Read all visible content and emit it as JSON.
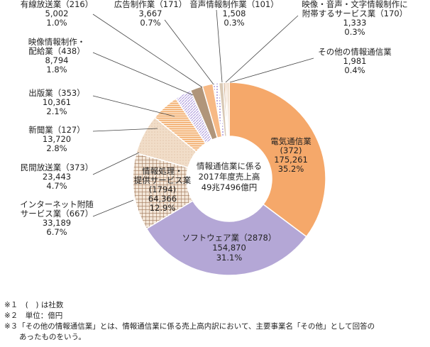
{
  "chart_data": {
    "type": "pie",
    "donut": true,
    "center_text": [
      "情報通信業に係る",
      "2017年度売上高",
      "49兆7496億円"
    ],
    "slices": [
      {
        "name": "電気通信業",
        "count": "(372)",
        "value": 175261,
        "pct": 35.2,
        "value_text": "175,261",
        "pct_text": "35.2%",
        "color": "#f5a86a",
        "pattern": "solid"
      },
      {
        "name": "ソフトウェア業",
        "count": "(2878)",
        "value": 154870,
        "pct": 31.1,
        "value_text": "154,870",
        "pct_text": "31.1%",
        "color": "#b4a7d6",
        "pattern": "solid"
      },
      {
        "name": "情報処理・提供サービス業",
        "count": "(1794)",
        "value": 64366,
        "pct": 12.9,
        "value_text": "64,366",
        "pct_text": "12.9%",
        "color": "#b08d6e",
        "pattern": "grid"
      },
      {
        "name": "インターネット附随サービス業",
        "count": "(667)",
        "value": 33189,
        "pct": 6.7,
        "value_text": "33,189",
        "pct_text": "6.7%",
        "color": "#e8c8a8",
        "pattern": "light"
      },
      {
        "name": "民間放送業",
        "count": "(373)",
        "value": 23443,
        "pct": 4.7,
        "value_text": "23,443",
        "pct_text": "4.7%",
        "color": "#f5b87a",
        "pattern": "hlines"
      },
      {
        "name": "新聞業",
        "count": "(127)",
        "value": 13720,
        "pct": 2.8,
        "value_text": "13,720",
        "pct_text": "2.8%",
        "color": "#c8b8e6",
        "pattern": "diag"
      },
      {
        "name": "出版業",
        "count": "(353)",
        "value": 10361,
        "pct": 2.1,
        "value_text": "10,361",
        "pct_text": "2.1%",
        "color": "#b0957a",
        "pattern": "solid"
      },
      {
        "name": "映像情報制作・配給業",
        "count": "(438)",
        "value": 8794,
        "pct": 1.8,
        "value_text": "8,794",
        "pct_text": "1.8%",
        "color": "#f7b985",
        "pattern": "solid"
      },
      {
        "name": "有線放送業",
        "count": "(216)",
        "value": 5002,
        "pct": 1.0,
        "value_text": "5,002",
        "pct_text": "1.0%",
        "color": "#b8a8dc",
        "pattern": "dots"
      },
      {
        "name": "広告制作業",
        "count": "(171)",
        "value": 3667,
        "pct": 0.7,
        "value_text": "3,667",
        "pct_text": "0.7%",
        "color": "#d9c9b5",
        "pattern": "solid"
      },
      {
        "name": "音声情報制作業",
        "count": "(101)",
        "value": 1508,
        "pct": 0.3,
        "value_text": "1,508",
        "pct_text": "0.3%",
        "color": "#c9a17a",
        "pattern": "solid"
      },
      {
        "name": "映像・音声・文字情報制作に附帯するサービス業",
        "count": "(170)",
        "value": 1333,
        "pct": 0.3,
        "value_text": "1,333",
        "pct_text": "0.3%",
        "color": "#e0a070",
        "pattern": "solid"
      },
      {
        "name": "その他の情報通信業",
        "count": "",
        "value": 1981,
        "pct": 0.4,
        "value_text": "1,981",
        "pct_text": "0.4%",
        "color": "#ead2b8",
        "pattern": "solid"
      }
    ],
    "labels": [
      {
        "lines": [
          "電気通信業",
          "(372)",
          "175,261",
          "35.2%"
        ]
      },
      {
        "lines": [
          "ソフトウェア業（2878）",
          "154,870",
          "31.1%"
        ]
      },
      {
        "lines": [
          "情報処理・",
          "提供サービス業",
          "(1794)",
          "64,366",
          "12.9%"
        ]
      },
      {
        "lines": [
          "インターネット附随",
          "サービス業（667）",
          "33,189",
          "6.7%"
        ]
      },
      {
        "lines": [
          "民間放送業（373）",
          "23,443",
          "4.7%"
        ]
      },
      {
        "lines": [
          "新聞業（127）",
          "13,720",
          "2.8%"
        ]
      },
      {
        "lines": [
          "出版業（353）",
          "10,361",
          "2.1%"
        ]
      },
      {
        "lines": [
          "映像情報制作・",
          "配給業（438）",
          "8,794",
          "1.8%"
        ]
      },
      {
        "lines": [
          "有線放送業（216）",
          "5,002",
          "1.0%"
        ]
      },
      {
        "lines": [
          "広告制作業（171）",
          "3,667",
          "0.7%"
        ]
      },
      {
        "lines": [
          "音声情報制作業（101）",
          "1,508",
          "0.3%"
        ]
      },
      {
        "lines": [
          "映像・音声・文字情報制作に",
          "附帯するサービス業（170）",
          "1,333",
          "0.3%"
        ]
      },
      {
        "lines": [
          "その他の情報通信業",
          "1,981",
          "0.4%"
        ]
      }
    ]
  },
  "notes": [
    "※１　(　) は社数",
    "※２　単位：億円",
    "※３「その他の情報通信業」とは、情報通信業に係る売上高内訳において、主要事業名「その他」として回答の",
    "　　あったものをいう。"
  ]
}
